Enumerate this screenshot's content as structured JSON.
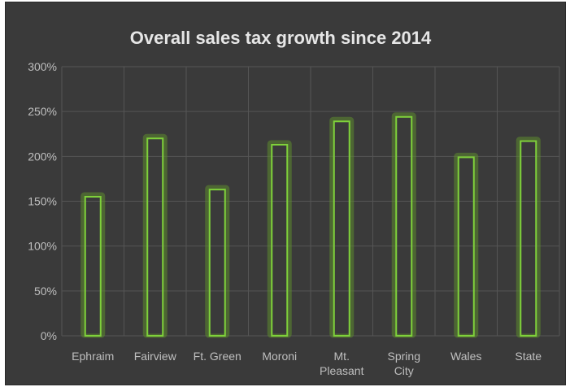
{
  "chart_data": {
    "type": "bar",
    "title": "Overall sales tax growth since 2014",
    "categories": [
      "Ephraim",
      "Fairview",
      "Ft. Green",
      "Moroni",
      "Mt. Pleasant",
      "Spring City",
      "Wales",
      "State"
    ],
    "category_lines": [
      [
        "Ephraim"
      ],
      [
        "Fairview"
      ],
      [
        "Ft. Green"
      ],
      [
        "Moroni"
      ],
      [
        "Mt.",
        "Pleasant"
      ],
      [
        "Spring",
        "City"
      ],
      [
        "Wales"
      ],
      [
        "State"
      ]
    ],
    "values": [
      155,
      220,
      163,
      213,
      239,
      244,
      199,
      217
    ],
    "value_unit": "%",
    "ylim": [
      0,
      300
    ],
    "yticks": [
      0,
      50,
      100,
      150,
      200,
      250,
      300
    ],
    "ytick_labels": [
      "0%",
      "50%",
      "100%",
      "150%",
      "200%",
      "250%",
      "300%"
    ],
    "xlabel": "",
    "ylabel": "",
    "grid": true,
    "legend": "none",
    "colors": {
      "background": "#3a3a3a",
      "gridline": "#555555",
      "bar_outline": "#7fd13b",
      "bar_glow": "#5c8a2e",
      "text": "#bfbfbf",
      "title": "#e6e6e6"
    }
  }
}
